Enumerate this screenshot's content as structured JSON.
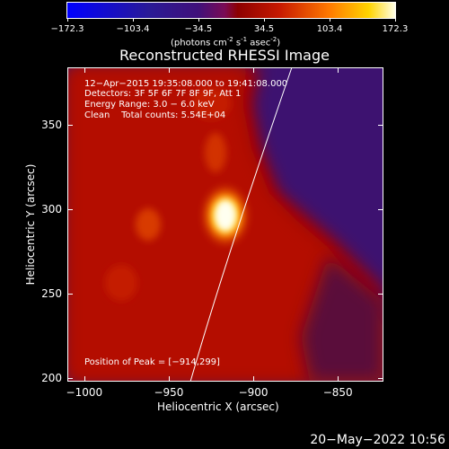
{
  "colorbar": {
    "ticks": [
      "-172.3",
      "-103.4",
      "-34.5",
      "34.5",
      "103.4",
      "172.3"
    ],
    "unit_prefix": "(photons cm",
    "unit_exp1": "-2",
    "unit_mid": " s",
    "unit_exp2": "-1",
    "unit_mid2": " asec",
    "unit_exp3": "-2",
    "unit_suffix": ")"
  },
  "chart_data": {
    "type": "heatmap",
    "title": "Reconstructed RHESSI Image",
    "xlabel": "Heliocentric X (arcsec)",
    "ylabel": "Heliocentric Y (arcsec)",
    "xlim": [
      -1010,
      -823
    ],
    "ylim": [
      198,
      384
    ],
    "x_ticks": [
      "−1000",
      "−950",
      "−900",
      "−850"
    ],
    "x_tick_values": [
      -1000,
      -950,
      -900,
      -850
    ],
    "y_ticks": [
      "200",
      "250",
      "300",
      "350"
    ],
    "y_tick_values": [
      200,
      250,
      300,
      350
    ],
    "color_range": [
      -172.3,
      172.3
    ],
    "peak": {
      "x": -914,
      "y": 299,
      "value": 172.3
    },
    "annotations": {
      "time": "12−Apr−2015 19:35:08.000 to 19:41:08.000",
      "detectors": "Detectors: 3F 5F 6F 7F 8F 9F, Att 1",
      "energy": "Energy Range: 3.0 − 6.0 keV",
      "clean": "Clean    Total counts: 5.54E+04",
      "peak": "Position of Peak = [−914,299]"
    }
  },
  "footer": {
    "timestamp": "20−May−2022 10:56"
  },
  "colors": {
    "limb": "#ffffff",
    "background": "#000000"
  }
}
